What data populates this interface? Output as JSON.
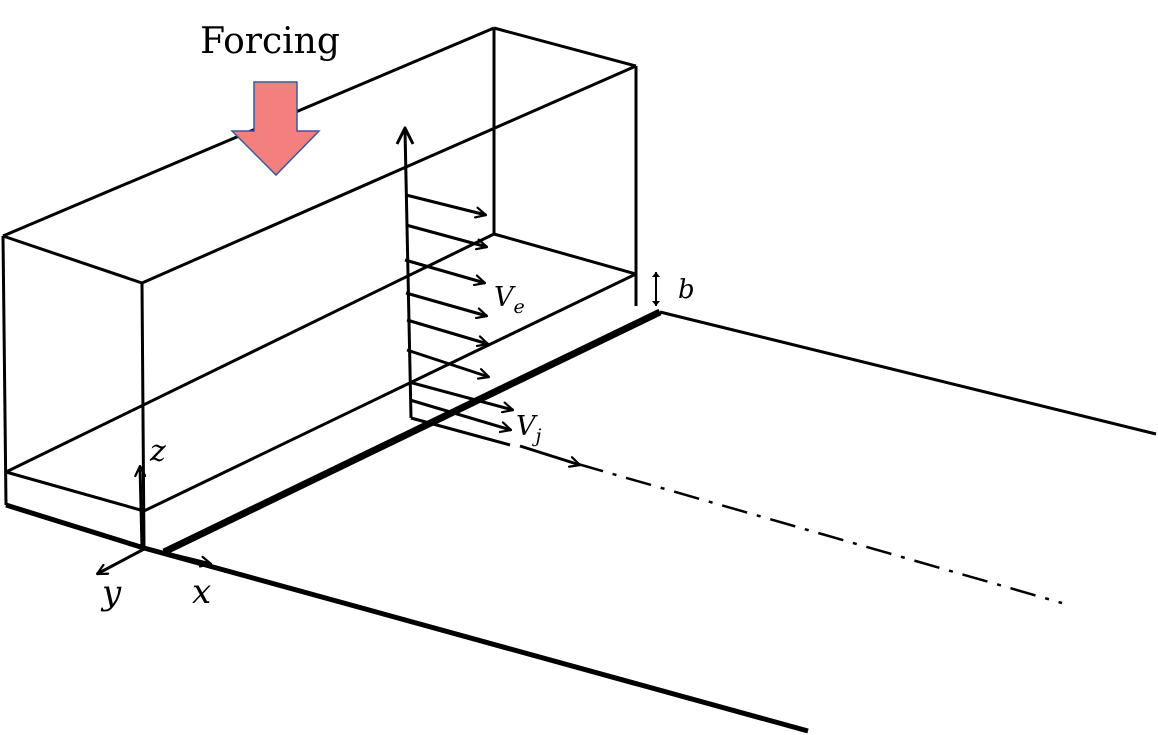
{
  "labels": {
    "forcing": "Forcing",
    "ve": "V",
    "ve_sub": "e",
    "vj": "V",
    "vj_sub": "j",
    "b": "b",
    "x": "x",
    "y": "y",
    "z": "z"
  },
  "colors": {
    "stroke": "#000000",
    "forcing_fill": "#f47f7f",
    "forcing_stroke": "#3a5a9a",
    "background": "#ffffff"
  },
  "icons": {
    "forcing": "down-arrow-icon"
  }
}
